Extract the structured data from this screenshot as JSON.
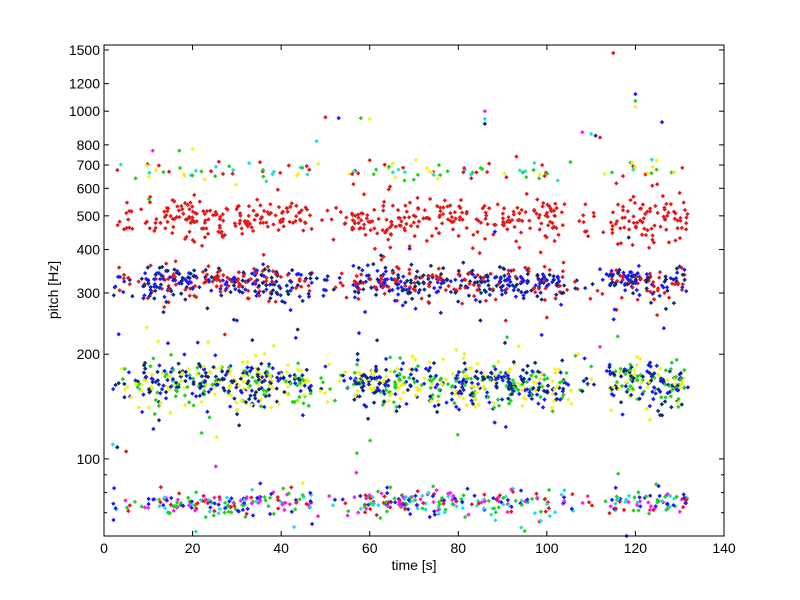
{
  "chart_data": {
    "type": "scatter",
    "title": "",
    "xlabel": "time [s]",
    "ylabel": "pitch [Hz]",
    "xlim": [
      0,
      140
    ],
    "ylim": [
      60,
      1550
    ],
    "yscale": "log",
    "grid": false,
    "legend": "none",
    "x_ticks": [
      0,
      20,
      40,
      60,
      80,
      100,
      120,
      140
    ],
    "y_ticks": [
      100,
      200,
      300,
      400,
      500,
      600,
      700,
      800,
      1000,
      1200,
      1500
    ],
    "y_minor_ticks": [
      70,
      80,
      90
    ],
    "series_colors": [
      "#e11b1b",
      "#1a1aff",
      "#22d022",
      "#f2f21a",
      "#ee22ee",
      "#22dddd",
      "#0a2a7a"
    ],
    "segments": [
      {
        "t_start": 2,
        "t_end": 9,
        "density": 0.4
      },
      {
        "t_start": 9,
        "t_end": 47,
        "density": 1.0
      },
      {
        "t_start": 48,
        "t_end": 56,
        "density": 0.25
      },
      {
        "t_start": 56,
        "t_end": 104,
        "density": 1.0
      },
      {
        "t_start": 104,
        "t_end": 114,
        "density": 0.2
      },
      {
        "t_start": 114,
        "t_end": 132,
        "density": 1.0
      }
    ],
    "bands": [
      {
        "name": "band-75hz",
        "center_hz": 75,
        "spread_hz": 3,
        "colors": [
          "#e11b1b",
          "#22d022",
          "#ee22ee",
          "#22dddd",
          "#1a1aff"
        ],
        "density": 0.45
      },
      {
        "name": "band-165hz",
        "center_hz": 165,
        "spread_hz": 12,
        "colors": [
          "#22d022",
          "#f2f21a",
          "#1a1aff",
          "#0a2a7a"
        ],
        "density": 1.0
      },
      {
        "name": "band-320hz",
        "center_hz": 320,
        "spread_hz": 18,
        "colors": [
          "#1a1aff",
          "#e11b1b",
          "#0a2a7a"
        ],
        "density": 0.8
      },
      {
        "name": "band-490hz",
        "center_hz": 490,
        "spread_hz": 35,
        "colors": [
          "#e11b1b"
        ],
        "density": 0.5
      },
      {
        "name": "band-670hz",
        "center_hz": 670,
        "spread_hz": 20,
        "colors": [
          "#22d022",
          "#f2f21a",
          "#e11b1b",
          "#22dddd"
        ],
        "density": 0.12
      }
    ],
    "outliers": [
      {
        "x": 115,
        "y": 1470
      },
      {
        "x": 120,
        "y": 1120
      },
      {
        "x": 120,
        "y": 1070
      },
      {
        "x": 120,
        "y": 1030
      },
      {
        "x": 86,
        "y": 1000
      },
      {
        "x": 86,
        "y": 950
      },
      {
        "x": 86,
        "y": 920
      },
      {
        "x": 50,
        "y": 960
      },
      {
        "x": 53,
        "y": 955
      },
      {
        "x": 58,
        "y": 955
      },
      {
        "x": 60,
        "y": 950
      },
      {
        "x": 108,
        "y": 870
      },
      {
        "x": 110,
        "y": 860
      },
      {
        "x": 111,
        "y": 850
      },
      {
        "x": 112,
        "y": 840
      },
      {
        "x": 126,
        "y": 930
      },
      {
        "x": 17,
        "y": 770
      },
      {
        "x": 20,
        "y": 780
      },
      {
        "x": 11,
        "y": 770
      },
      {
        "x": 48,
        "y": 820
      },
      {
        "x": 85,
        "y": 250
      },
      {
        "x": 100,
        "y": 255
      },
      {
        "x": 30,
        "y": 250
      },
      {
        "x": 116,
        "y": 225
      },
      {
        "x": 107,
        "y": 200
      },
      {
        "x": 112,
        "y": 210
      },
      {
        "x": 2,
        "y": 110
      },
      {
        "x": 3,
        "y": 108
      },
      {
        "x": 5,
        "y": 105
      },
      {
        "x": 118,
        "y": 60
      },
      {
        "x": 95,
        "y": 62
      },
      {
        "x": 120,
        "y": 59
      }
    ]
  }
}
